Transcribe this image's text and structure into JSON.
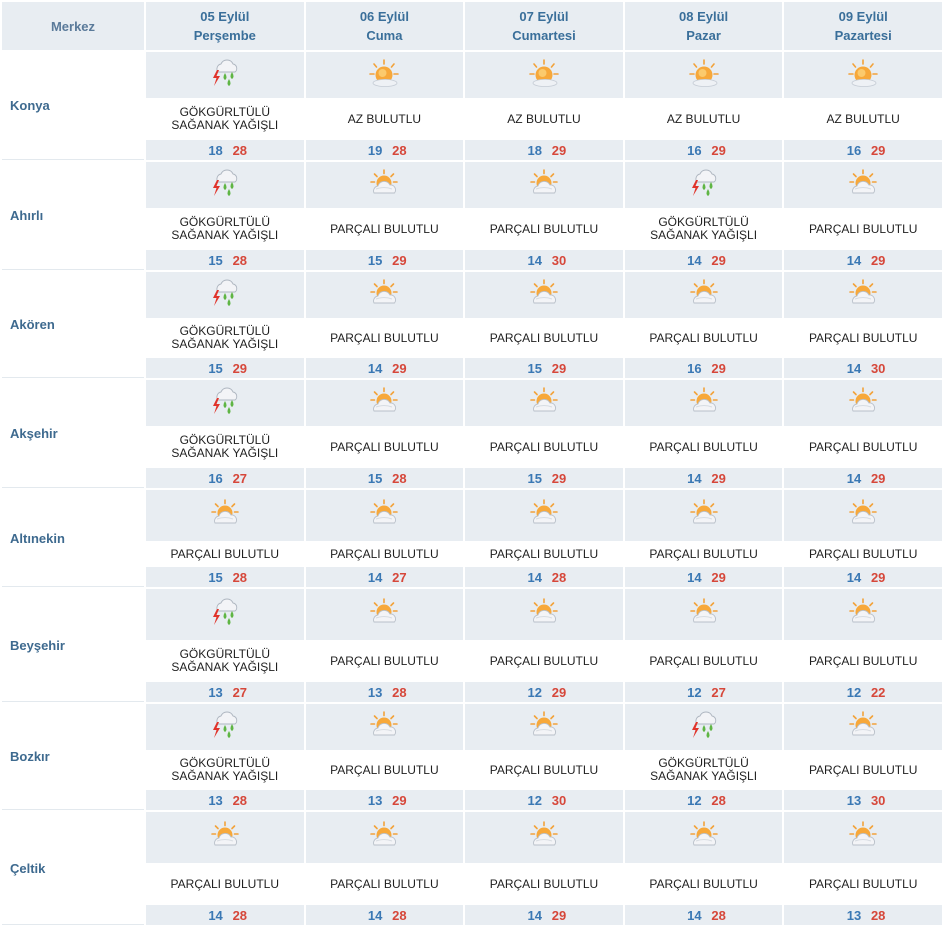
{
  "header": {
    "center_label": "Merkez",
    "days": [
      {
        "date": "05 Eylül",
        "weekday": "Perşembe"
      },
      {
        "date": "06 Eylül",
        "weekday": "Cuma"
      },
      {
        "date": "07 Eylül",
        "weekday": "Cumartesi"
      },
      {
        "date": "08 Eylül",
        "weekday": "Pazar"
      },
      {
        "date": "09 Eylül",
        "weekday": "Pazartesi"
      }
    ]
  },
  "colors": {
    "header_bg": "#e8edf2",
    "station_text": "#3e6a8f",
    "min_temp": "#3a78b4",
    "max_temp": "#d6473a"
  },
  "stations": [
    {
      "name": "Konya",
      "days": [
        {
          "icon": "thunderstorm-icon",
          "cond": [
            "GÖKGÜRLTÜLÜ",
            "SAĞANAK YAĞIŞLI"
          ],
          "min": "18",
          "max": "28"
        },
        {
          "icon": "sunny-icon",
          "cond": [
            "AZ BULUTLU"
          ],
          "min": "19",
          "max": "28"
        },
        {
          "icon": "sunny-icon",
          "cond": [
            "AZ BULUTLU"
          ],
          "min": "18",
          "max": "29"
        },
        {
          "icon": "sunny-icon",
          "cond": [
            "AZ BULUTLU"
          ],
          "min": "16",
          "max": "29"
        },
        {
          "icon": "sunny-icon",
          "cond": [
            "AZ BULUTLU"
          ],
          "min": "16",
          "max": "29"
        }
      ]
    },
    {
      "name": "Ahırlı",
      "days": [
        {
          "icon": "thunderstorm-icon",
          "cond": [
            "GÖKGÜRLTÜLÜ",
            "SAĞANAK YAĞIŞLI"
          ],
          "min": "15",
          "max": "28"
        },
        {
          "icon": "partly-cloudy-icon",
          "cond": [
            "PARÇALI BULUTLU"
          ],
          "min": "15",
          "max": "29"
        },
        {
          "icon": "partly-cloudy-icon",
          "cond": [
            "PARÇALI BULUTLU"
          ],
          "min": "14",
          "max": "30"
        },
        {
          "icon": "thunderstorm-icon",
          "cond": [
            "GÖKGÜRLTÜLÜ",
            "SAĞANAK YAĞIŞLI"
          ],
          "min": "14",
          "max": "29"
        },
        {
          "icon": "partly-cloudy-icon",
          "cond": [
            "PARÇALI BULUTLU"
          ],
          "min": "14",
          "max": "29"
        }
      ]
    },
    {
      "name": "Akören",
      "days": [
        {
          "icon": "thunderstorm-icon",
          "cond": [
            "GÖKGÜRLTÜLÜ",
            "SAĞANAK YAĞIŞLI"
          ],
          "min": "15",
          "max": "29"
        },
        {
          "icon": "partly-cloudy-icon",
          "cond": [
            "PARÇALI BULUTLU"
          ],
          "min": "14",
          "max": "29"
        },
        {
          "icon": "partly-cloudy-icon",
          "cond": [
            "PARÇALI BULUTLU"
          ],
          "min": "15",
          "max": "29"
        },
        {
          "icon": "partly-cloudy-icon",
          "cond": [
            "PARÇALI BULUTLU"
          ],
          "min": "16",
          "max": "29"
        },
        {
          "icon": "partly-cloudy-icon",
          "cond": [
            "PARÇALI BULUTLU"
          ],
          "min": "14",
          "max": "30"
        }
      ]
    },
    {
      "name": "Akşehir",
      "days": [
        {
          "icon": "thunderstorm-icon",
          "cond": [
            "GÖKGÜRLTÜLÜ",
            "SAĞANAK YAĞIŞLI"
          ],
          "min": "16",
          "max": "27"
        },
        {
          "icon": "partly-cloudy-icon",
          "cond": [
            "PARÇALI BULUTLU"
          ],
          "min": "15",
          "max": "28"
        },
        {
          "icon": "partly-cloudy-icon",
          "cond": [
            "PARÇALI BULUTLU"
          ],
          "min": "15",
          "max": "29"
        },
        {
          "icon": "partly-cloudy-icon",
          "cond": [
            "PARÇALI BULUTLU"
          ],
          "min": "14",
          "max": "29"
        },
        {
          "icon": "partly-cloudy-icon",
          "cond": [
            "PARÇALI BULUTLU"
          ],
          "min": "14",
          "max": "29"
        }
      ]
    },
    {
      "name": "Altınekin",
      "days": [
        {
          "icon": "partly-cloudy-icon",
          "cond": [
            "PARÇALI BULUTLU"
          ],
          "min": "15",
          "max": "28"
        },
        {
          "icon": "partly-cloudy-icon",
          "cond": [
            "PARÇALI BULUTLU"
          ],
          "min": "14",
          "max": "27"
        },
        {
          "icon": "partly-cloudy-icon",
          "cond": [
            "PARÇALI BULUTLU"
          ],
          "min": "14",
          "max": "28"
        },
        {
          "icon": "partly-cloudy-icon",
          "cond": [
            "PARÇALI BULUTLU"
          ],
          "min": "14",
          "max": "29"
        },
        {
          "icon": "partly-cloudy-icon",
          "cond": [
            "PARÇALI BULUTLU"
          ],
          "min": "14",
          "max": "29"
        }
      ]
    },
    {
      "name": "Beyşehir",
      "days": [
        {
          "icon": "thunderstorm-icon",
          "cond": [
            "GÖKGÜRLTÜLÜ",
            "SAĞANAK YAĞIŞLI"
          ],
          "min": "13",
          "max": "27"
        },
        {
          "icon": "partly-cloudy-icon",
          "cond": [
            "PARÇALI BULUTLU"
          ],
          "min": "13",
          "max": "28"
        },
        {
          "icon": "partly-cloudy-icon",
          "cond": [
            "PARÇALI BULUTLU"
          ],
          "min": "12",
          "max": "29"
        },
        {
          "icon": "partly-cloudy-icon",
          "cond": [
            "PARÇALI BULUTLU"
          ],
          "min": "12",
          "max": "27"
        },
        {
          "icon": "partly-cloudy-icon",
          "cond": [
            "PARÇALI BULUTLU"
          ],
          "min": "12",
          "max": "22"
        }
      ]
    },
    {
      "name": "Bozkır",
      "days": [
        {
          "icon": "thunderstorm-icon",
          "cond": [
            "GÖKGÜRLTÜLÜ",
            "SAĞANAK YAĞIŞLI"
          ],
          "min": "13",
          "max": "28"
        },
        {
          "icon": "partly-cloudy-icon",
          "cond": [
            "PARÇALI BULUTLU"
          ],
          "min": "13",
          "max": "29"
        },
        {
          "icon": "partly-cloudy-icon",
          "cond": [
            "PARÇALI BULUTLU"
          ],
          "min": "12",
          "max": "30"
        },
        {
          "icon": "thunderstorm-icon",
          "cond": [
            "GÖKGÜRLTÜLÜ",
            "SAĞANAK YAĞIŞLI"
          ],
          "min": "12",
          "max": "28"
        },
        {
          "icon": "partly-cloudy-icon",
          "cond": [
            "PARÇALI BULUTLU"
          ],
          "min": "13",
          "max": "30"
        }
      ]
    },
    {
      "name": "Çeltik",
      "days": [
        {
          "icon": "partly-cloudy-icon",
          "cond": [
            "PARÇALI BULUTLU"
          ],
          "min": "14",
          "max": "28"
        },
        {
          "icon": "partly-cloudy-icon",
          "cond": [
            "PARÇALI BULUTLU"
          ],
          "min": "14",
          "max": "28"
        },
        {
          "icon": "partly-cloudy-icon",
          "cond": [
            "PARÇALI BULUTLU"
          ],
          "min": "14",
          "max": "29"
        },
        {
          "icon": "partly-cloudy-icon",
          "cond": [
            "PARÇALI BULUTLU"
          ],
          "min": "14",
          "max": "28"
        },
        {
          "icon": "partly-cloudy-icon",
          "cond": [
            "PARÇALI BULUTLU"
          ],
          "min": "13",
          "max": "28"
        }
      ]
    }
  ]
}
